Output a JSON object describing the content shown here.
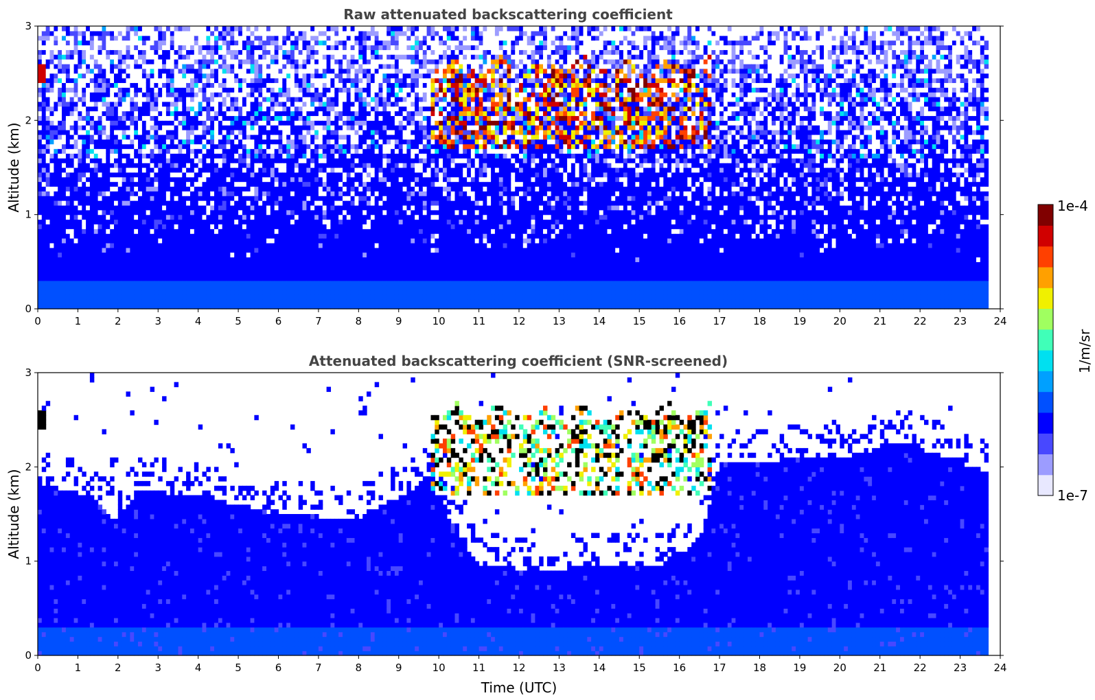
{
  "colors": {
    "background": "#ffffff",
    "title_gray": "#444444",
    "colormap": [
      "#e8e8ff",
      "#9c9cff",
      "#4848ff",
      "#0000ff",
      "#0050ff",
      "#00a0ff",
      "#00e0f0",
      "#40ffb8",
      "#a0ff60",
      "#f0f000",
      "#ffa000",
      "#ff4000",
      "#d00000",
      "#800000"
    ]
  },
  "colorbar": {
    "label": "1/m/sr",
    "max_label": "1e-4",
    "min_label": "1e-7",
    "range": [
      1e-07,
      0.0001
    ],
    "scale": "log"
  },
  "chart_data": [
    {
      "type": "heatmap",
      "title": "Raw attenuated backscattering coefficient",
      "xlabel": "",
      "ylabel": "Altitude (km)",
      "xlim": [
        0,
        24
      ],
      "ylim": [
        0,
        3
      ],
      "x_ticks": [
        "0",
        "1",
        "2",
        "3",
        "4",
        "5",
        "6",
        "7",
        "8",
        "9",
        "10",
        "11",
        "12",
        "13",
        "14",
        "15",
        "16",
        "17",
        "18",
        "19",
        "20",
        "21",
        "22",
        "23",
        "24"
      ],
      "y_ticks": [
        "0",
        "1",
        "2",
        "3"
      ],
      "data_time_end": 23.65,
      "noisy": true,
      "cloud_layer": {
        "time_start": 9.8,
        "time_end": 16.8,
        "altitude_range": [
          1.7,
          2.7
        ]
      },
      "early_feature": {
        "time": 0.1,
        "altitude": 2.5
      }
    },
    {
      "type": "heatmap",
      "title": "Attenuated backscattering coefficient (SNR-screened)",
      "xlabel": "Time (UTC)",
      "ylabel": "Altitude (km)",
      "xlim": [
        0,
        24
      ],
      "ylim": [
        0,
        3
      ],
      "x_ticks": [
        "0",
        "1",
        "2",
        "3",
        "4",
        "5",
        "6",
        "7",
        "8",
        "9",
        "10",
        "11",
        "12",
        "13",
        "14",
        "15",
        "16",
        "17",
        "18",
        "19",
        "20",
        "21",
        "22",
        "23",
        "24"
      ],
      "y_ticks": [
        "0",
        "1",
        "2",
        "3"
      ],
      "data_time_end": 23.65,
      "noisy": false,
      "boundary_layer_top": [
        [
          0,
          1.8
        ],
        [
          1.4,
          1.7
        ],
        [
          1.9,
          1.45
        ],
        [
          2.5,
          1.75
        ],
        [
          4,
          1.7
        ],
        [
          6,
          1.5
        ],
        [
          8,
          1.45
        ],
        [
          9.7,
          1.85
        ],
        [
          11,
          0.95
        ],
        [
          12.5,
          0.9
        ],
        [
          14,
          0.95
        ],
        [
          15.5,
          0.95
        ],
        [
          16.5,
          1.2
        ],
        [
          17,
          2.05
        ],
        [
          20,
          2.1
        ],
        [
          21.6,
          2.25
        ],
        [
          23.65,
          1.95
        ]
      ],
      "cloud_layer": {
        "time_start": 9.8,
        "time_end": 16.8,
        "altitude_range": [
          1.7,
          2.7
        ]
      },
      "early_feature": {
        "time": 0.1,
        "altitude": 2.5
      }
    }
  ]
}
